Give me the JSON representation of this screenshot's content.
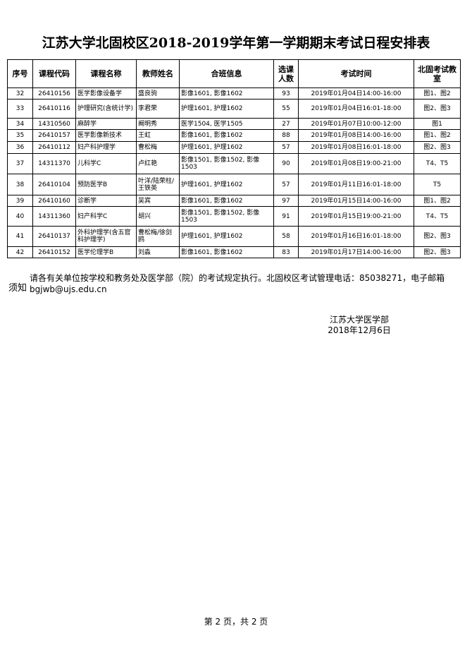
{
  "title": "江苏大学北固校区2018-2019学年第一学期期末考试日程安排表",
  "headers": [
    "序号",
    "课程代码",
    "课程名称",
    "教师姓名",
    "合班信息",
    "选课人数",
    "考试时间",
    "北固考试教　室"
  ],
  "rows": [
    [
      "32",
      "26410156",
      "医学影像设备学",
      "盛良驹",
      "影像1601, 影像1602",
      "93",
      "2019年01月04日14:00-16:00",
      "图1、图2"
    ],
    [
      "33",
      "26410116",
      "护理研究(含统计学)",
      "李君荣",
      "护理1601, 护理1602",
      "55",
      "2019年01月04日16:01-18:00",
      "图2、图3"
    ],
    [
      "34",
      "14310560",
      "麻醉学",
      "阚明秀",
      "医学1504, 医学1505",
      "27",
      "2019年01月07日10:00-12:00",
      "图1"
    ],
    [
      "35",
      "26410157",
      "医学影像新技术",
      "王虹",
      "影像1601, 影像1602",
      "88",
      "2019年01月08日14:00-16:00",
      "图1、图2"
    ],
    [
      "36",
      "26410112",
      "妇产科护理学",
      "曹松梅",
      "护理1601, 护理1602",
      "57",
      "2019年01月08日16:01-18:00",
      "图2、图3"
    ],
    [
      "37",
      "14311370",
      "儿科学C",
      "卢红艳",
      "影像1501, 影像1502, 影像1503",
      "90",
      "2019年01月08日19:00-21:00",
      "T4、T5"
    ],
    [
      "38",
      "26410104",
      "预防医学B",
      "叶洋/陆荣柱/王铁英",
      "护理1601, 护理1602",
      "57",
      "2019年01月11日16:01-18:00",
      "T5"
    ],
    [
      "39",
      "26410160",
      "诊断学",
      "吴宾",
      "影像1601, 影像1602",
      "97",
      "2019年01月15日14:00-16:00",
      "图1、图2"
    ],
    [
      "40",
      "14311360",
      "妇产科学C",
      "胡兴",
      "影像1501, 影像1502, 影像1503",
      "91",
      "2019年01月15日19:00-21:00",
      "T4、T5"
    ],
    [
      "41",
      "26410137",
      "外科护理学(含五官科护理学)",
      "曹松梅/徐剑鸥",
      "护理1601, 护理1602",
      "58",
      "2019年01月16日16:01-18:00",
      "图2、图3"
    ],
    [
      "42",
      "26410152",
      "医学伦理学B",
      "刘淼",
      "影像1601, 影像1602",
      "83",
      "2019年01月17日14:00-16:00",
      "图2、图3"
    ]
  ],
  "note_label": "须知",
  "note_text": "请各有关单位按学校和教务处及医学部（院）的考试规定执行。北固校区考试管理电话：85038271，电子邮箱bgjwb@ujs.edu.cn",
  "signature": {
    "org": "江苏大学医学部",
    "date": "2018年12月6日"
  },
  "footer": "第 2 页，共 2 页"
}
